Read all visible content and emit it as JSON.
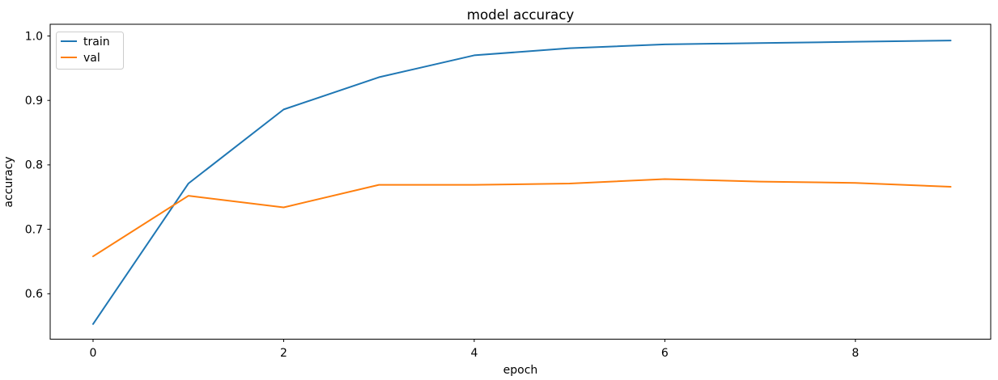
{
  "chart_data": {
    "type": "line",
    "title": "model accuracy",
    "xlabel": "epoch",
    "ylabel": "accuracy",
    "x": [
      0,
      1,
      2,
      3,
      4,
      5,
      6,
      7,
      8,
      9
    ],
    "series": [
      {
        "name": "train",
        "color": "#1f77b4",
        "values": [
          0.553,
          0.771,
          0.886,
          0.936,
          0.97,
          0.981,
          0.987,
          0.989,
          0.991,
          0.993
        ]
      },
      {
        "name": "val",
        "color": "#ff7f0e",
        "values": [
          0.658,
          0.752,
          0.734,
          0.769,
          0.769,
          0.771,
          0.778,
          0.774,
          0.772,
          0.766
        ]
      }
    ],
    "xticks": [
      0,
      2,
      4,
      6,
      8
    ],
    "xtick_labels": [
      "0",
      "2",
      "4",
      "6",
      "8"
    ],
    "yticks": [
      1.0,
      0.9,
      0.8,
      0.7,
      0.6
    ],
    "ytick_labels": [
      "1.0",
      "0.9",
      "0.8",
      "0.7",
      "0.6"
    ],
    "xlim": [
      -0.45,
      9.42
    ],
    "ylim": [
      0.5295,
      1.0182
    ],
    "grid": false,
    "legend_position": "upper left",
    "legend_entries": [
      "train",
      "val"
    ],
    "axis_color": "#000000",
    "legend_border_color": "#cccccc",
    "background_color": "#ffffff"
  }
}
